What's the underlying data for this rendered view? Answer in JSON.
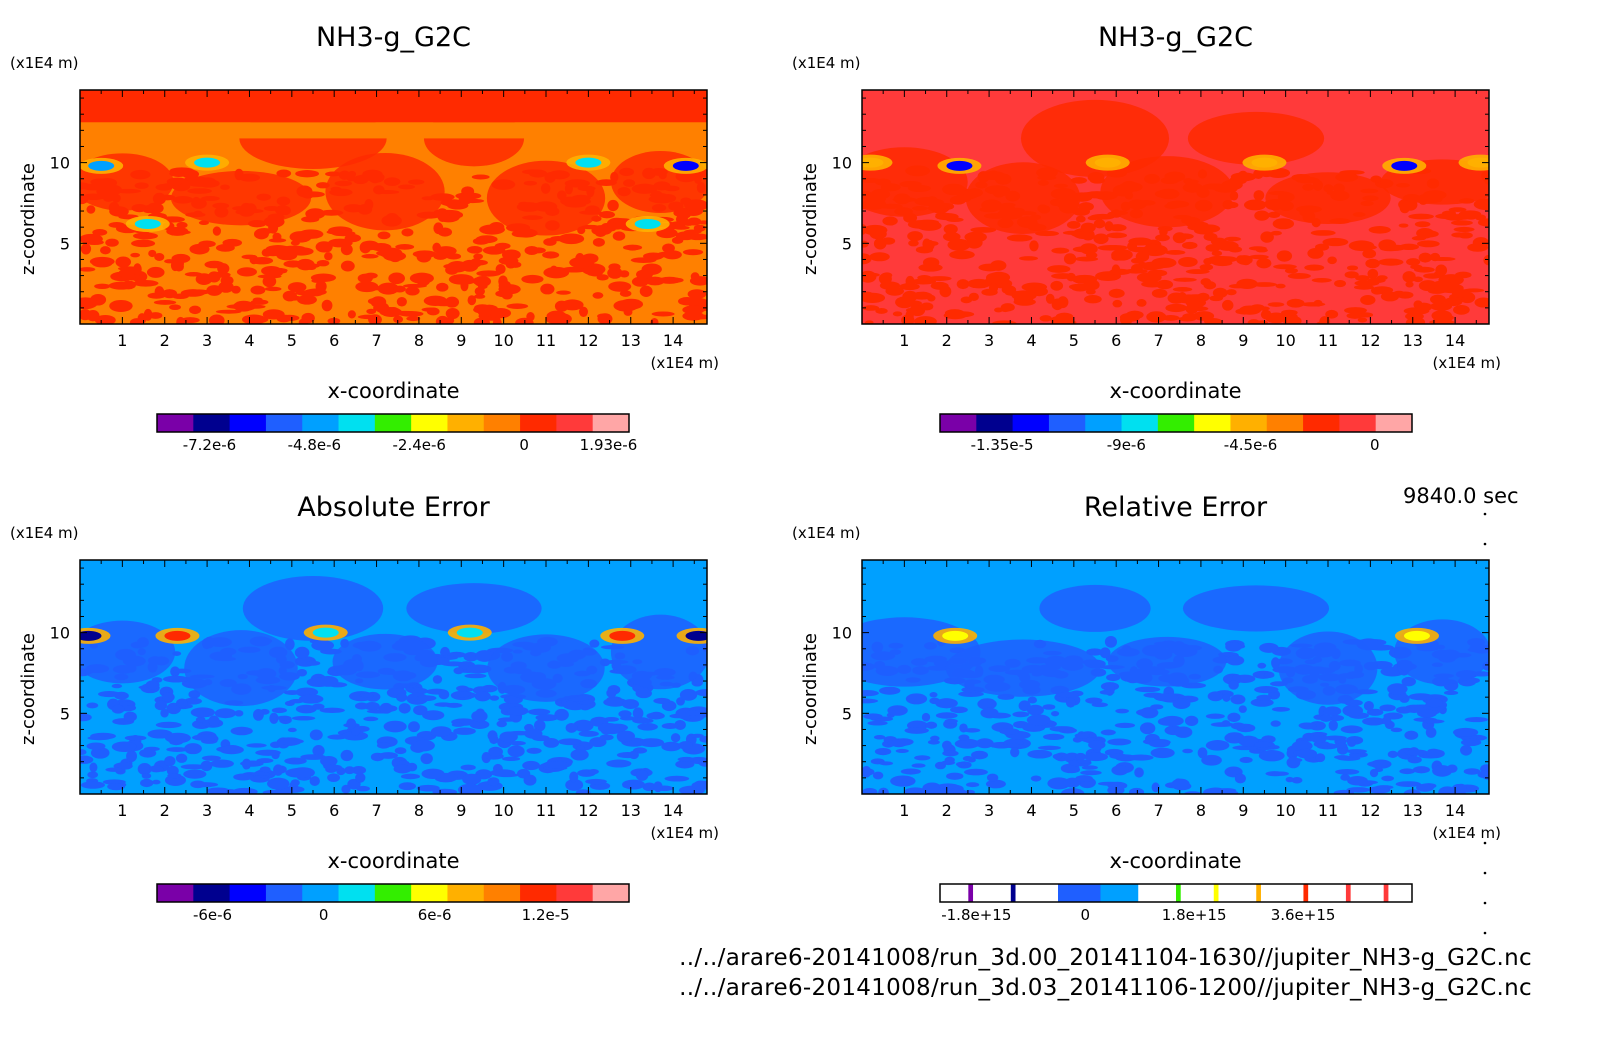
{
  "time_label": "9840.0 sec",
  "files": [
    "../../arare6-20141008/run_3d.00_20141104-1630//jupiter_NH3-g_G2C.nc",
    "../../arare6-20141008/run_3d.03_20141106-1200//jupiter_NH3-g_G2C.nc"
  ],
  "colors": {
    "purple": "#7a00a8",
    "navy": "#00008f",
    "blue": "#0000ff",
    "blue2": "#1f5fff",
    "lightblue": "#00a0ff",
    "cyan": "#00e0f0",
    "green": "#33ee00",
    "yellow": "#ffff00",
    "amber": "#ffb000",
    "orange": "#ff8000",
    "redorange": "#ff2a00",
    "red": "#ff3a3a",
    "pink": "#ffa6a6"
  },
  "chart_data": [
    {
      "type": "heatmap",
      "title": "NH3-g_G2C",
      "xlabel": "x-coordinate",
      "ylabel": "z-coordinate",
      "x_unit": "(x1E4 m)",
      "y_unit": "(x1E4 m)",
      "xlim": [
        0,
        14.8
      ],
      "ylim": [
        0,
        14.5
      ],
      "x_ticks": [
        1,
        2,
        3,
        4,
        5,
        6,
        7,
        8,
        9,
        10,
        11,
        12,
        13,
        14
      ],
      "y_ticks": [
        5,
        10
      ],
      "colorbar": {
        "labels": [
          "-7.2e-6",
          "-4.8e-6",
          "-2.4e-6",
          "0",
          "1.93e-6"
        ],
        "label_values": [
          -7.2e-06,
          -4.8e-06,
          -2.4e-06,
          0,
          1.93e-06
        ],
        "vmin": -8.4e-06,
        "vmax": 2.4e-06,
        "colors": [
          "purple",
          "navy",
          "blue",
          "blue2",
          "lightblue",
          "cyan",
          "green",
          "yellow",
          "amber",
          "orange",
          "redorange",
          "red",
          "pink"
        ]
      },
      "background": [
        "orange",
        "redorange"
      ],
      "bands": [
        {
          "z": [
            11.5,
            12.5
          ],
          "color": "orange"
        },
        {
          "z": [
            12.5,
            14.5
          ],
          "color": "redorange"
        }
      ],
      "anomalies": [
        {
          "x": 0.5,
          "z": 9.8,
          "color": "lightblue"
        },
        {
          "x": 3.0,
          "z": 10.0,
          "color": "cyan"
        },
        {
          "x": 12.0,
          "z": 10.0,
          "color": "cyan"
        },
        {
          "x": 14.3,
          "z": 9.8,
          "color": "blue"
        },
        {
          "x": 1.6,
          "z": 6.2,
          "color": "cyan"
        },
        {
          "x": 13.4,
          "z": 6.2,
          "color": "cyan"
        }
      ]
    },
    {
      "type": "heatmap",
      "title": "NH3-g_G2C",
      "xlabel": "x-coordinate",
      "ylabel": "z-coordinate",
      "x_unit": "(x1E4 m)",
      "y_unit": "(x1E4 m)",
      "xlim": [
        0,
        14.8
      ],
      "ylim": [
        0,
        14.5
      ],
      "x_ticks": [
        1,
        2,
        3,
        4,
        5,
        6,
        7,
        8,
        9,
        10,
        11,
        12,
        13,
        14
      ],
      "y_ticks": [
        5,
        10
      ],
      "colorbar": {
        "labels": [
          "-1.35e-5",
          "-9e-6",
          "-4.5e-6",
          "0"
        ],
        "label_values": [
          -1.35e-05,
          -9e-06,
          -4.5e-06,
          0
        ],
        "vmin": -1.575e-05,
        "vmax": 1.35e-06,
        "colors": [
          "purple",
          "navy",
          "blue",
          "blue2",
          "lightblue",
          "cyan",
          "green",
          "yellow",
          "amber",
          "orange",
          "redorange",
          "red",
          "pink"
        ]
      },
      "background": [
        "red",
        "redorange"
      ],
      "bands": [],
      "anomalies": [
        {
          "x": 2.3,
          "z": 9.8,
          "color": "blue"
        },
        {
          "x": 12.8,
          "z": 9.8,
          "color": "blue"
        },
        {
          "x": 5.8,
          "z": 10.0,
          "color": "amber"
        },
        {
          "x": 9.5,
          "z": 10.0,
          "color": "amber"
        },
        {
          "x": 0.2,
          "z": 10.0,
          "color": "amber"
        },
        {
          "x": 14.6,
          "z": 10.0,
          "color": "amber"
        }
      ]
    },
    {
      "type": "heatmap",
      "title": "Absolute Error",
      "xlabel": "x-coordinate",
      "ylabel": "z-coordinate",
      "x_unit": "(x1E4 m)",
      "y_unit": "(x1E4 m)",
      "xlim": [
        0,
        14.8
      ],
      "ylim": [
        0,
        14.5
      ],
      "x_ticks": [
        1,
        2,
        3,
        4,
        5,
        6,
        7,
        8,
        9,
        10,
        11,
        12,
        13,
        14
      ],
      "y_ticks": [
        5,
        10
      ],
      "colorbar": {
        "labels": [
          "-6e-6",
          "0",
          "6e-6",
          "1.2e-5"
        ],
        "label_values": [
          -6e-06,
          0,
          6e-06,
          1.2e-05
        ],
        "vmin": -9e-06,
        "vmax": 1.65e-05,
        "colors": [
          "purple",
          "navy",
          "blue",
          "blue2",
          "lightblue",
          "cyan",
          "green",
          "yellow",
          "amber",
          "orange",
          "redorange",
          "red",
          "pink"
        ]
      },
      "background": [
        "lightblue",
        "blue2"
      ],
      "bands": [],
      "anomalies": [
        {
          "x": 2.3,
          "z": 9.8,
          "color": "redorange"
        },
        {
          "x": 12.8,
          "z": 9.8,
          "color": "redorange"
        },
        {
          "x": 0.2,
          "z": 9.8,
          "color": "navy"
        },
        {
          "x": 14.6,
          "z": 9.8,
          "color": "navy"
        },
        {
          "x": 5.8,
          "z": 10.0,
          "color": "cyan"
        },
        {
          "x": 9.2,
          "z": 10.0,
          "color": "cyan"
        }
      ]
    },
    {
      "type": "heatmap",
      "title": "Relative Error",
      "xlabel": "x-coordinate",
      "ylabel": "z-coordinate",
      "x_unit": "(x1E4 m)",
      "y_unit": "(x1E4 m)",
      "xlim": [
        0,
        14.8
      ],
      "ylim": [
        0,
        14.5
      ],
      "x_ticks": [
        1,
        2,
        3,
        4,
        5,
        6,
        7,
        8,
        9,
        10,
        11,
        12,
        13,
        14
      ],
      "y_ticks": [
        5,
        10
      ],
      "colorbar": {
        "labels": [
          "-1.8e+15",
          "0",
          "1.8e+15",
          "3.6e+15"
        ],
        "label_values": [
          -1800000000000000.0,
          0,
          1800000000000000.0,
          3600000000000000.0
        ],
        "vmin": -2400000000000000.0,
        "vmax": 5400000000000000.0,
        "colors": [
          "white",
          "purple",
          "white",
          "navy",
          "white",
          "blue2",
          "lightblue",
          "white",
          "green",
          "white",
          "yellow",
          "white",
          "amber",
          "white",
          "redorange",
          "white",
          "red",
          "white",
          "red",
          "white"
        ],
        "segment_edges": [
          0,
          6,
          7,
          15,
          16,
          25,
          34,
          42,
          50,
          51,
          58,
          59,
          67,
          68,
          77,
          78,
          86,
          87,
          94,
          95,
          100
        ]
      },
      "background": [
        "lightblue",
        "blue2"
      ],
      "bands": [],
      "anomalies": [
        {
          "x": 2.2,
          "z": 9.8,
          "color": "yellow"
        },
        {
          "x": 13.1,
          "z": 9.8,
          "color": "yellow"
        }
      ]
    }
  ]
}
